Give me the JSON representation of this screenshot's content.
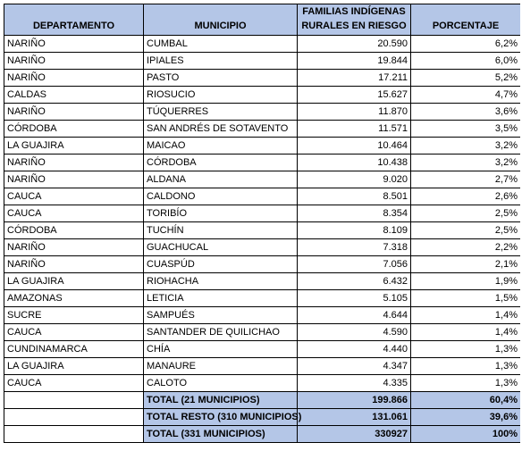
{
  "headers": {
    "departamento": "DEPARTAMENTO",
    "municipio": "MUNICIPIO",
    "familias_line1": "FAMILIAS INDÍGENAS",
    "familias_line2": "RURALES EN RIESGO",
    "porcentaje": "PORCENTAJE"
  },
  "rows": [
    {
      "departamento": "NARIÑO",
      "municipio": "CUMBAL",
      "familias": "20.590",
      "porcentaje": "6,2%"
    },
    {
      "departamento": "NARIÑO",
      "municipio": "IPIALES",
      "familias": "19.844",
      "porcentaje": "6,0%"
    },
    {
      "departamento": "NARIÑO",
      "municipio": "PASTO",
      "familias": "17.211",
      "porcentaje": "5,2%"
    },
    {
      "departamento": "CALDAS",
      "municipio": "RIOSUCIO",
      "familias": "15.627",
      "porcentaje": "4,7%"
    },
    {
      "departamento": "NARIÑO",
      "municipio": "TÚQUERRES",
      "familias": "11.870",
      "porcentaje": "3,6%"
    },
    {
      "departamento": "CÓRDOBA",
      "municipio": "SAN ANDRÉS DE SOTAVENTO",
      "familias": "11.571",
      "porcentaje": "3,5%"
    },
    {
      "departamento": "LA GUAJIRA",
      "municipio": "MAICAO",
      "familias": "10.464",
      "porcentaje": "3,2%"
    },
    {
      "departamento": "NARIÑO",
      "municipio": "CÓRDOBA",
      "familias": "10.438",
      "porcentaje": "3,2%"
    },
    {
      "departamento": "NARIÑO",
      "municipio": "ALDANA",
      "familias": "9.020",
      "porcentaje": "2,7%"
    },
    {
      "departamento": "CAUCA",
      "municipio": "CALDONO",
      "familias": "8.501",
      "porcentaje": "2,6%"
    },
    {
      "departamento": "CAUCA",
      "municipio": "TORIBÍO",
      "familias": "8.354",
      "porcentaje": "2,5%"
    },
    {
      "departamento": "CÓRDOBA",
      "municipio": "TUCHÍN",
      "familias": "8.109",
      "porcentaje": "2,5%"
    },
    {
      "departamento": "NARIÑO",
      "municipio": "GUACHUCAL",
      "familias": "7.318",
      "porcentaje": "2,2%"
    },
    {
      "departamento": "NARIÑO",
      "municipio": "CUASPÚD",
      "familias": "7.056",
      "porcentaje": "2,1%"
    },
    {
      "departamento": "LA GUAJIRA",
      "municipio": "RIOHACHA",
      "familias": "6.432",
      "porcentaje": "1,9%"
    },
    {
      "departamento": "AMAZONAS",
      "municipio": "LETICIA",
      "familias": "5.105",
      "porcentaje": "1,5%"
    },
    {
      "departamento": "SUCRE",
      "municipio": "SAMPUÉS",
      "familias": "4.644",
      "porcentaje": "1,4%"
    },
    {
      "departamento": "CAUCA",
      "municipio": "SANTANDER DE QUILICHAO",
      "familias": "4.590",
      "porcentaje": "1,4%"
    },
    {
      "departamento": "CUNDINAMARCA",
      "municipio": "CHÍA",
      "familias": "4.440",
      "porcentaje": "1,3%"
    },
    {
      "departamento": "LA GUAJIRA",
      "municipio": "MANAURE",
      "familias": "4.347",
      "porcentaje": "1,3%"
    },
    {
      "departamento": "CAUCA",
      "municipio": "CALOTO",
      "familias": "4.335",
      "porcentaje": "1,3%"
    }
  ],
  "totals": [
    {
      "label": "TOTAL (21 MUNICIPIOS)",
      "familias": "199.866",
      "porcentaje": "60,4%"
    },
    {
      "label": "TOTAL RESTO (310 MUNICIPIOS)",
      "familias": "131.061",
      "porcentaje": "39,6%"
    },
    {
      "label": "TOTAL (331 MUNICIPIOS)",
      "familias": "330927",
      "porcentaje": "100%"
    }
  ],
  "colors": {
    "header_fill": "#b4c6e7",
    "border": "#000000"
  }
}
